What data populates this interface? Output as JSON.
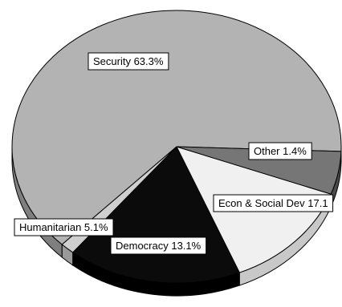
{
  "chart_data": {
    "type": "pie",
    "title": "",
    "slices": [
      {
        "label": "Security",
        "value": 63.3,
        "display": "Security 63.3%",
        "color": "#b3b3b3",
        "side_color": "#7f7f7f"
      },
      {
        "label": "Other",
        "value": 1.4,
        "display": "Other 1.4%",
        "color": "#cfcfcf",
        "side_color": "#9a9a9a"
      },
      {
        "label": "Econ & Social Dev",
        "value": 17.1,
        "display": "Econ & Social Dev 17.1",
        "color": "#0b0b0b",
        "side_color": "#000000"
      },
      {
        "label": "Democracy",
        "value": 13.1,
        "display": "Democracy 13.1%",
        "color": "#f0f0f0",
        "side_color": "#c8c8c8"
      },
      {
        "label": "Humanitarian",
        "value": 5.1,
        "display": "Humanitarian 5.1%",
        "color": "#767676",
        "side_color": "#4a4a4a"
      }
    ],
    "legend": "none",
    "style": "3d-tilted"
  }
}
